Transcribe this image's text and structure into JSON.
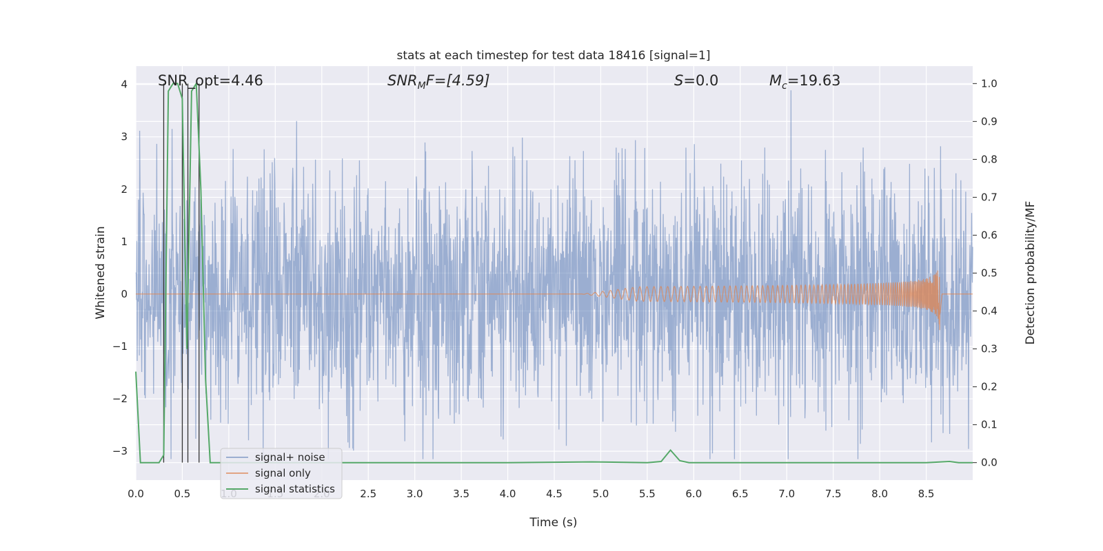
{
  "chart_data": {
    "type": "line",
    "title": "stats at each timestep for test data 18416 [signal=1]",
    "xlabel": "Time (s)",
    "ylabel": "Whitened strain",
    "y2label": "Detection probability/MF",
    "xlim": [
      0.0,
      9.0
    ],
    "ylim": [
      -3.55,
      4.35
    ],
    "y2lim": [
      -0.046,
      1.046
    ],
    "x_ticks": [
      "0.0",
      "0.5",
      "1.0",
      "1.5",
      "2.0",
      "2.5",
      "3.0",
      "3.5",
      "4.0",
      "4.5",
      "5.0",
      "5.5",
      "6.0",
      "6.5",
      "7.0",
      "7.5",
      "8.0",
      "8.5"
    ],
    "y_ticks": [
      "4",
      "3",
      "2",
      "1",
      "0",
      "−1",
      "−2",
      "−3"
    ],
    "y2_ticks": [
      "1.0",
      "0.9",
      "0.8",
      "0.7",
      "0.6",
      "0.5",
      "0.4",
      "0.3",
      "0.2",
      "0.1",
      "0.0"
    ],
    "grid": true,
    "legend_placement": "lower-left",
    "legend": [
      "signal+ noise",
      "signal only",
      "signal statistics"
    ],
    "annotations": {
      "snr_opt": "SNR_opt=4.46",
      "snr_mf_text": "SNR",
      "snr_mf_sub": "M",
      "snr_mf_suffix": "F=[4.59]",
      "s_italic": "S",
      "s_value": "=0.0",
      "mc_italic": "M",
      "mc_sub": "c",
      "mc_value": "=19.63"
    },
    "noise": {
      "description": "whitened strain with noise, spanning roughly -3 to 4",
      "x_range": [
        0.0,
        9.0
      ],
      "amplitude_core": 1.1,
      "max_peak": 4.0,
      "min_trough": -3.15
    },
    "signal_chirp": {
      "start_time": 4.8,
      "end_time": 8.65,
      "peak_amplitude": 0.75
    },
    "vertical_markers": [
      0.3,
      0.5,
      0.56,
      0.68
    ],
    "series": [
      {
        "name": "signal statistics",
        "axis": "right",
        "x": [
          0.0,
          0.05,
          0.1,
          0.15,
          0.2,
          0.25,
          0.3,
          0.35,
          0.4,
          0.45,
          0.5,
          0.55,
          0.6,
          0.65,
          0.7,
          0.75,
          0.8,
          0.85,
          0.9,
          1.0,
          2.0,
          3.0,
          4.0,
          4.9,
          5.5,
          5.65,
          5.75,
          5.85,
          5.95,
          6.5,
          7.0,
          8.0,
          8.5,
          8.75,
          8.85,
          9.0
        ],
        "y": [
          0.24,
          0.0,
          0.0,
          0.0,
          0.0,
          0.0,
          0.02,
          0.98,
          1.0,
          1.0,
          0.96,
          0.3,
          0.98,
          1.0,
          0.72,
          0.22,
          0.0,
          0.0,
          0.0,
          0.0,
          0.0,
          0.0,
          0.0,
          0.002,
          0.0,
          0.003,
          0.033,
          0.005,
          0.0,
          0.0,
          0.0,
          0.0,
          0.0,
          0.003,
          0.0,
          0.0
        ]
      }
    ],
    "colors": {
      "background": "#eaeaf2",
      "grid": "#ffffff",
      "noise": "#4c72b0",
      "signal": "#dd8452",
      "stats": "#55a868",
      "marker": "#333333"
    }
  }
}
